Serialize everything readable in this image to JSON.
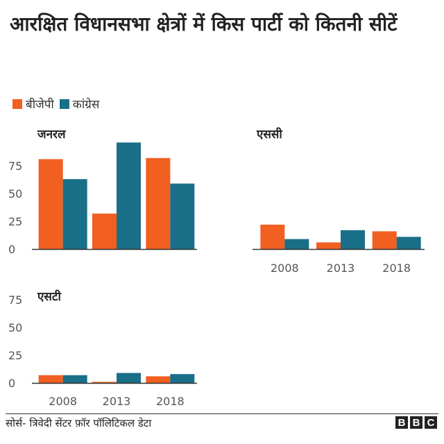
{
  "title": "आरक्षित विधानसभा क्षेत्रों में किस पार्टी को कितनी सीटें",
  "legend": [
    {
      "name": "बीजेपी",
      "color": "#f15f21"
    },
    {
      "name": "कांग्रेस",
      "color": "#1a6f88"
    }
  ],
  "source": "सोर्स- त्रिवेदी सेंटर फ़ॉर पॉलिटिकल डेटा",
  "logo": [
    "B",
    "B",
    "C"
  ],
  "chart_data": [
    {
      "type": "bar",
      "title": "जनरल",
      "categories": [
        "2008",
        "2013",
        "2018"
      ],
      "series": [
        {
          "name": "बीजेपी",
          "values": [
            81,
            32,
            82
          ]
        },
        {
          "name": "कांग्रेस",
          "values": [
            63,
            96,
            59
          ]
        }
      ],
      "ylim": [
        0,
        100
      ],
      "yticks": [
        0,
        25,
        50,
        75
      ],
      "show_x_labels": false,
      "show_y_labels": true
    },
    {
      "type": "bar",
      "title": "एससी",
      "categories": [
        "2008",
        "2013",
        "2018"
      ],
      "series": [
        {
          "name": "बीजेपी",
          "values": [
            22,
            6,
            16
          ]
        },
        {
          "name": "कांग्रेस",
          "values": [
            9,
            17,
            11
          ]
        }
      ],
      "ylim": [
        0,
        100
      ],
      "show_x_labels": true,
      "show_y_labels": false
    },
    {
      "type": "bar",
      "title": "एसटी",
      "categories": [
        "2008",
        "2013",
        "2018"
      ],
      "series": [
        {
          "name": "बीजेपी",
          "values": [
            7,
            1,
            6
          ]
        },
        {
          "name": "कांग्रेस",
          "values": [
            7,
            9,
            8
          ]
        }
      ],
      "ylim": [
        0,
        100
      ],
      "yticks": [
        0,
        25,
        50,
        75
      ],
      "show_x_labels": true,
      "show_y_labels": true
    }
  ]
}
